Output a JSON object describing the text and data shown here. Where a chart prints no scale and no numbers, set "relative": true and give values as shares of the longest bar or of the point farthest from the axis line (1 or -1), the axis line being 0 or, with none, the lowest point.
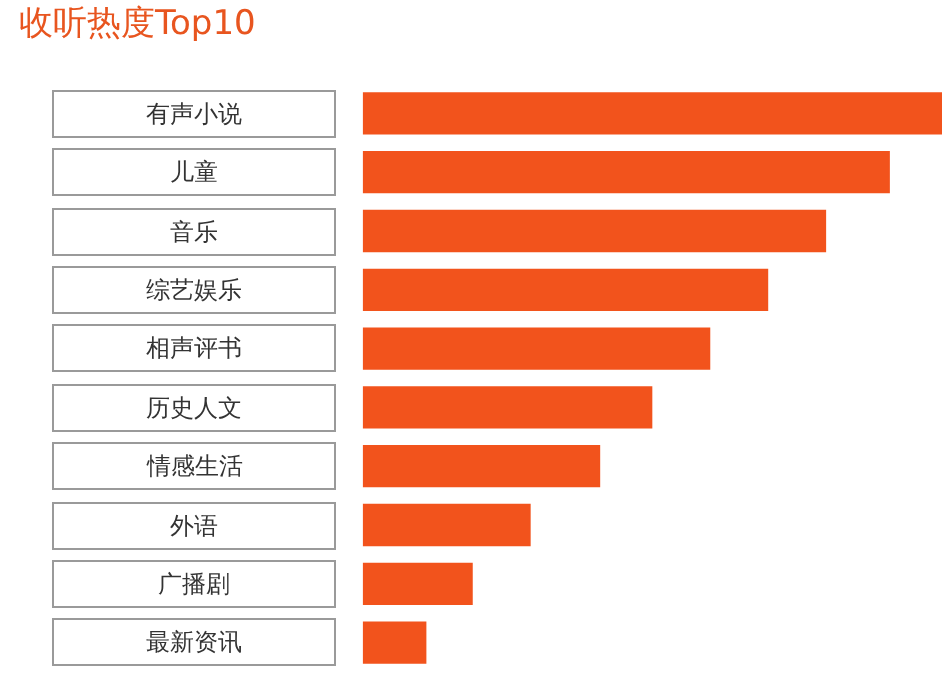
{
  "chart_data": {
    "type": "bar",
    "orientation": "horizontal",
    "relative": true,
    "title": "收听热度Top10",
    "categories": [
      "有声小说",
      "儿童",
      "音乐",
      "综艺娱乐",
      "相声评书",
      "历史人文",
      "情感生活",
      "外语",
      "广播剧",
      "最新资讯"
    ],
    "values": [
      1,
      0.91,
      0.8,
      0.7,
      0.6,
      0.5,
      0.41,
      0.29,
      0.19,
      0.11
    ],
    "color": "#f2531c",
    "legend": false
  }
}
